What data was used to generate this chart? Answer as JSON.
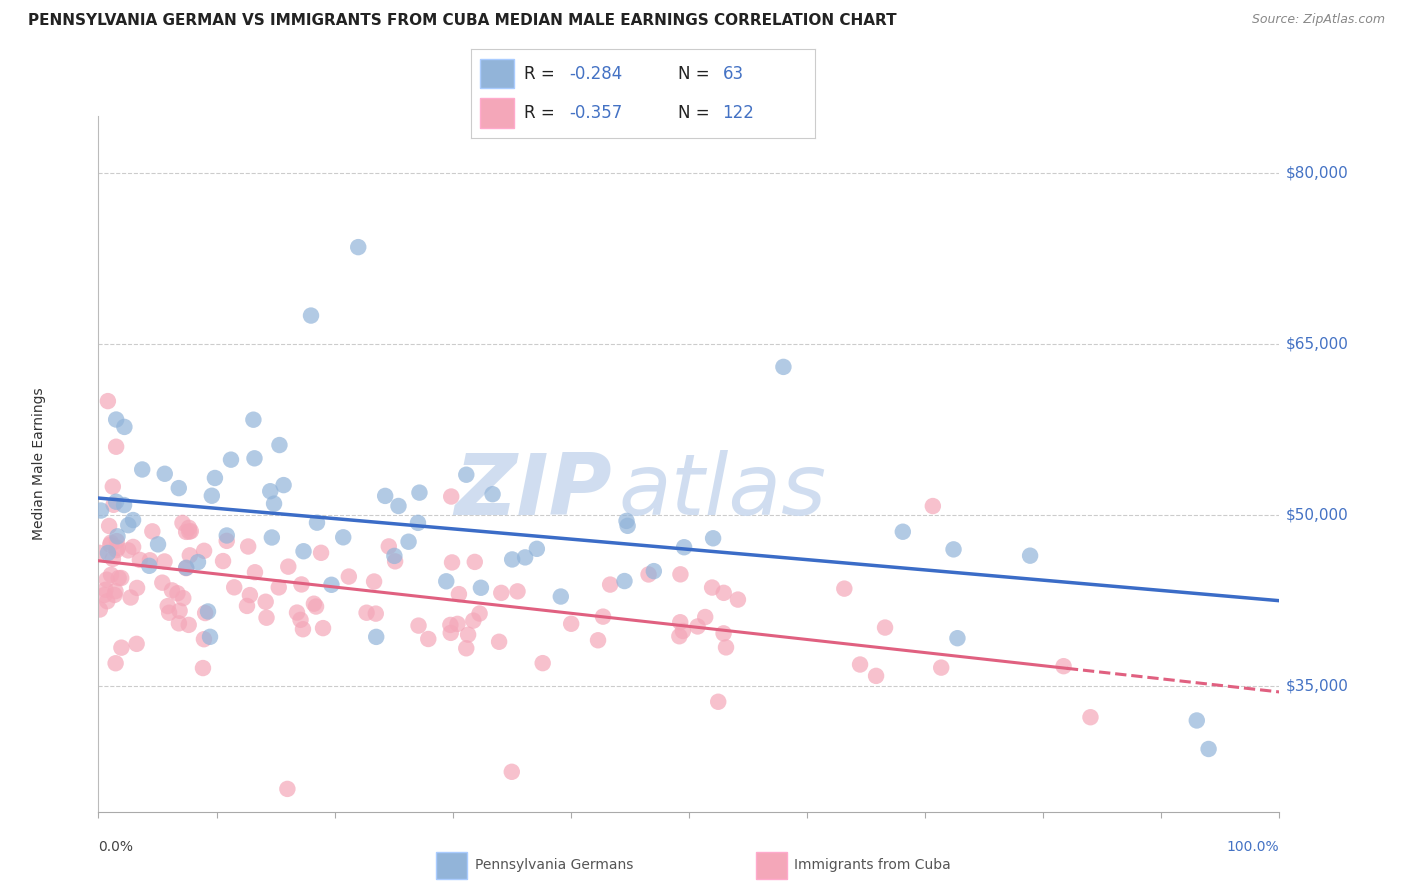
{
  "title": "PENNSYLVANIA GERMAN VS IMMIGRANTS FROM CUBA MEDIAN MALE EARNINGS CORRELATION CHART",
  "source": "Source: ZipAtlas.com",
  "ylabel": "Median Male Earnings",
  "watermark_zip": "ZIP",
  "watermark_atlas": "atlas",
  "legend_blue_R": "-0.284",
  "legend_blue_N": "63",
  "legend_pink_R": "-0.357",
  "legend_pink_N": "122",
  "yticks": [
    35000,
    50000,
    65000,
    80000
  ],
  "ytick_labels": [
    "$35,000",
    "$50,000",
    "$65,000",
    "$80,000"
  ],
  "y_min": 24000,
  "y_max": 85000,
  "x_min": 0.0,
  "x_max": 100.0,
  "blue_color": "#92B4D9",
  "pink_color": "#F4A7B9",
  "blue_line_color": "#3B6CC7",
  "pink_line_color": "#E06080",
  "background_color": "#FFFFFF",
  "grid_color": "#CCCCCC",
  "title_fontsize": 11,
  "source_fontsize": 9,
  "axis_label_fontsize": 10,
  "tick_color": "#4472C4",
  "blue_intercept": 51500,
  "blue_slope": -90,
  "pink_intercept": 46000,
  "pink_slope": -115,
  "pink_solid_end": 82,
  "bottom_labels": [
    "Pennsylvania Germans",
    "Immigrants from Cuba"
  ]
}
